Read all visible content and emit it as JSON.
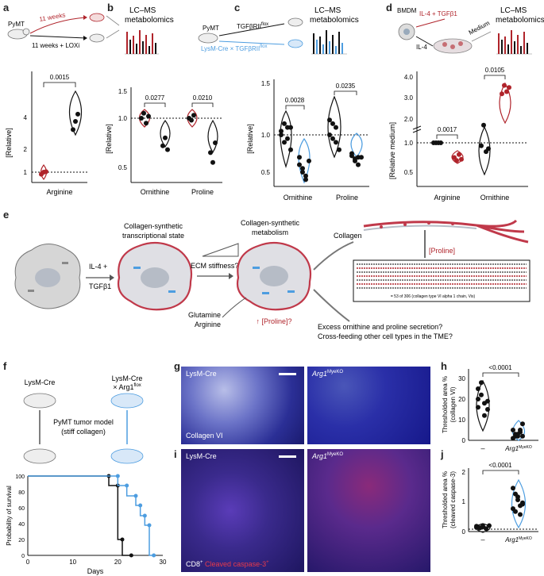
{
  "panels": {
    "a": {
      "letter": "a",
      "schema": {
        "mouse": "PyMT",
        "top": "11 weeks",
        "bottom": "11 weeks + LOXi"
      },
      "ylabel": "[Relative]",
      "xlabel": "Arginine",
      "pval": "0.0015",
      "yticks": [
        "1",
        "2",
        "4"
      ]
    },
    "b": {
      "letter": "b",
      "schema": {
        "title": "LC–MS\nmetabolomics",
        "line1": "LC–MS",
        "line2": "metabolomics"
      },
      "ylabel": "[Relative]",
      "categories": [
        "Ornithine",
        "Proline"
      ],
      "pvals": [
        "0.0277",
        "0.0210"
      ],
      "yticks": [
        "0.5",
        "1.0",
        "1.5"
      ]
    },
    "c": {
      "letter": "c",
      "schema": {
        "mouse": "PyMT",
        "top": "TGFβRII",
        "top_sup": "flox",
        "bottom": "LysM-Cre × TGFβRII",
        "bottom_sup": "flox",
        "line1": "LC–MS",
        "line2": "metabolomics"
      },
      "ylabel": "[Relative]",
      "categories": [
        "Ornithine",
        "Proline"
      ],
      "pvals": [
        "0.0028",
        "0.0235"
      ],
      "yticks": [
        "0.5",
        "1.0",
        "1.5"
      ]
    },
    "d": {
      "letter": "d",
      "schema": {
        "cell": "BMDM",
        "top": "IL-4 + TGFβ1",
        "bottom": "IL-4",
        "medium": "Medium",
        "line1": "LC–MS",
        "line2": "metabolomics"
      },
      "ylabel": "[Relative medium]",
      "categories": [
        "Arginine",
        "Ornithine"
      ],
      "pvals": [
        "0.0017",
        "0.0105"
      ],
      "yticks": [
        "0.5",
        "1.0",
        "2.0",
        "3.0",
        "4.0"
      ]
    },
    "e": {
      "letter": "e",
      "state1": "Collagen-synthetic\ntranscriptional state",
      "state1_l1": "Collagen-synthetic",
      "state1_l2": "transcriptional state",
      "state2_l1": "Collagen-synthetic",
      "state2_l2": "metabolism",
      "stim_l1": "IL-4 +",
      "stim_l2": "TGFβ1",
      "ecm": "ECM stiffness?",
      "nutr_l1": "Glutamine",
      "nutr_l2": "Arginine",
      "proline_q": "↑ [Proline]?",
      "collagen": "Collagen",
      "proline_box": "[Proline]",
      "seq_caption": "= 53 of 306 (collagen type VI alpha 1 chain, Vis)",
      "q1": "Excess ornithine and proline secretion?",
      "q2": "Cross-feeding other cell types in the TME?"
    },
    "f": {
      "letter": "f",
      "left": "LysM-Cre",
      "right_l1": "LysM-Cre",
      "right_l2": "× Arg1",
      "right_sup": "flox",
      "model_l1": "PyMT tumor model",
      "model_l2": "(stiff collagen)",
      "ylabel": "Probability of survival",
      "xlabel": "Days",
      "xticks": [
        "0",
        "10",
        "20",
        "30"
      ],
      "yticks": [
        "0",
        "20",
        "40",
        "60",
        "80",
        "100"
      ]
    },
    "g": {
      "letter": "g",
      "left": "LysM-Cre",
      "right": "Arg1",
      "right_sup": "MyeKO",
      "stain": "Collagen VI"
    },
    "h": {
      "letter": "h",
      "ylabel_l1": "Thresholded area %",
      "ylabel_l2": "(collagen VI)",
      "pval": "<0.0001",
      "xcats": [
        "–",
        "Arg1"
      ],
      "xcat_sup": "MyeKO",
      "yticks": [
        "0",
        "10",
        "20",
        "30"
      ]
    },
    "i": {
      "letter": "i",
      "left": "LysM-Cre",
      "right": "Arg1",
      "right_sup": "MyeKO",
      "stain1": "CD8",
      "stain1_sup": "+",
      "stain2": "Cleaved caspase-3",
      "stain2_sup": "+"
    },
    "j": {
      "letter": "j",
      "ylabel_l1": "Thresholded area %",
      "ylabel_l2": "(cleaved caspase-3)",
      "pval": "<0.0001",
      "xcats": [
        "–",
        "Arg1"
      ],
      "xcat_sup": "MyeKO",
      "yticks": [
        "0",
        "1",
        "2"
      ]
    }
  },
  "colors": {
    "red": "#b0242b",
    "blue": "#4d9de0",
    "black": "#111111",
    "grid": "#888888"
  },
  "chart_data": [
    {
      "panel": "a",
      "type": "scatter",
      "categories": [
        "Arginine"
      ],
      "series": [
        {
          "values": [
            0.8,
            1.0,
            1.05
          ]
        },
        {
          "values": [
            3.2,
            4.0,
            4.7
          ]
        }
      ],
      "ylim": [
        0,
        5
      ]
    },
    {
      "panel": "b",
      "type": "scatter",
      "categories": [
        "Ornithine",
        "Proline"
      ],
      "series": [
        {
          "values": [
            [
              1.0,
              1.05,
              0.95,
              1.02
            ],
            [
              1.0,
              0.98,
              1.03
            ]
          ]
        },
        {
          "values": [
            [
              0.72,
              0.8,
              0.68
            ],
            [
              0.65,
              0.55,
              0.75
            ]
          ]
        }
      ],
      "ylim": [
        0.5,
        1.5
      ]
    },
    {
      "panel": "c",
      "type": "scatter",
      "categories": [
        "Ornithine",
        "Proline"
      ],
      "series": [
        {
          "values": [
            [
              1.05,
              0.9,
              1.1,
              0.8,
              1.0,
              1.15,
              0.95,
              1.1
            ],
            [
              1.0,
              1.15,
              0.9,
              0.8,
              1.2,
              0.95,
              1.1
            ]
          ]
        },
        {
          "values": [
            [
              0.6,
              0.5,
              0.45,
              0.65,
              0.7,
              0.55,
              0.4
            ],
            [
              0.72,
              0.68,
              0.6,
              0.7,
              0.75,
              0.65,
              0.7
            ]
          ]
        }
      ],
      "ylim": [
        0.4,
        1.5
      ]
    },
    {
      "panel": "d",
      "type": "scatter",
      "categories": [
        "Arginine",
        "Ornithine"
      ],
      "series": [
        {
          "values": [
            [
              1.0,
              1.0,
              1.0,
              1.0
            ],
            [
              0.95,
              1.3,
              0.85,
              0.9
            ]
          ]
        },
        {
          "values": [
            [
              0.75,
              0.7,
              0.8,
              0.72
            ],
            [
              3.2,
              3.6,
              3.3,
              3.5
            ]
          ]
        }
      ],
      "ylim": [
        0.5,
        4
      ]
    },
    {
      "panel": "f",
      "type": "line",
      "xlabel": "Days",
      "ylabel": "Probability of survival",
      "series": [
        {
          "x": [
            0,
            18,
            18,
            20,
            20,
            21,
            21,
            23
          ],
          "y": [
            100,
            100,
            88,
            88,
            20,
            20,
            0,
            0
          ]
        },
        {
          "x": [
            0,
            20,
            20,
            22,
            22,
            24,
            24,
            25,
            25,
            26,
            26,
            27,
            27,
            28
          ],
          "y": [
            100,
            100,
            88,
            88,
            75,
            75,
            63,
            63,
            50,
            50,
            38,
            38,
            0,
            0
          ]
        }
      ],
      "xlim": [
        0,
        30
      ],
      "ylim": [
        0,
        100
      ]
    },
    {
      "panel": "h",
      "type": "scatter",
      "categories": [
        "–",
        "Arg1 MyeKO"
      ],
      "series": [
        {
          "values": [
            25,
            22,
            18,
            15,
            20,
            28,
            12,
            19,
            16
          ]
        },
        {
          "values": [
            5,
            3,
            2,
            4,
            8,
            1,
            2,
            3,
            5,
            2
          ]
        }
      ],
      "ylim": [
        0,
        35
      ]
    },
    {
      "panel": "j",
      "type": "scatter",
      "categories": [
        "–",
        "Arg1 MyeKO"
      ],
      "series": [
        {
          "values": [
            0.1,
            0.05,
            0.08,
            0.02,
            0.12,
            0.06,
            0.04,
            0.1
          ]
        },
        {
          "values": [
            1.4,
            1.2,
            1.0,
            0.8,
            0.9,
            0.7,
            0.6,
            1.1,
            0.5,
            0.85
          ]
        }
      ],
      "ylim": [
        0,
        2
      ]
    }
  ]
}
